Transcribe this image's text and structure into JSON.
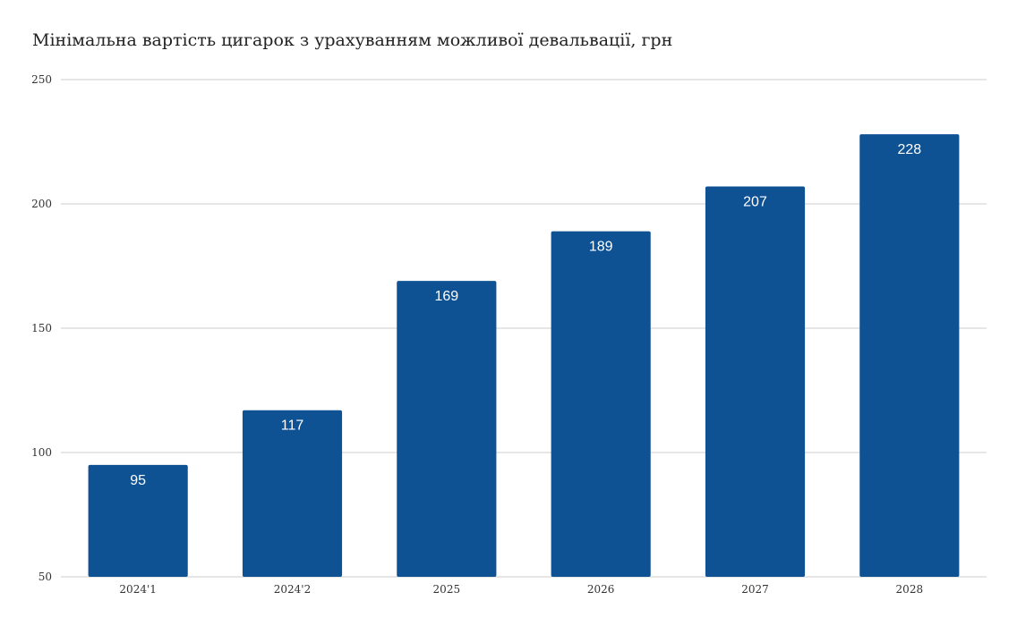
{
  "chart_data": {
    "type": "bar",
    "title": "Мінімальна вартість цигарок з урахуванням можливої девальвації, грн",
    "categories": [
      "2024'1",
      "2024'2",
      "2025",
      "2026",
      "2027",
      "2028"
    ],
    "values": [
      95,
      117,
      169,
      189,
      207,
      228
    ],
    "xlabel": "",
    "ylabel": "",
    "ylim": [
      50,
      250
    ],
    "yticks": [
      50,
      100,
      150,
      200,
      250
    ],
    "grid": true,
    "data_labels": true,
    "bar_color": "#0e5294",
    "grid_color": "#cccccc",
    "label_color": "#ffffff"
  }
}
